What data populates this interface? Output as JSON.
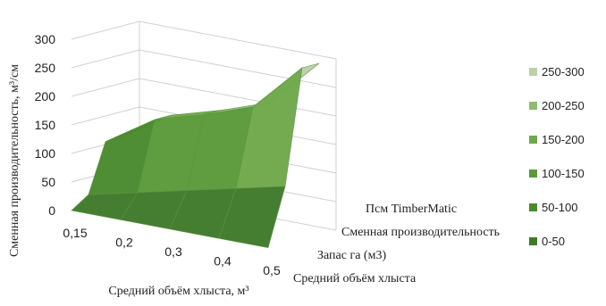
{
  "chart_data": {
    "type": "surface",
    "title": "",
    "xlabel": "Средний объём хлыста, м³",
    "ylabel": "Сменная производительность, м³/см",
    "zlim": [
      0,
      300
    ],
    "z_ticks": [
      0,
      50,
      100,
      150,
      200,
      250,
      300
    ],
    "x_categories": [
      "0,15",
      "0,2",
      "0,3",
      "0,4",
      "0,5"
    ],
    "depth_series": [
      "Средний объём хлыста",
      "Запас га (м3)",
      "Сменная производительность",
      "Псм TimberMatic"
    ],
    "grid": true,
    "legend_position": "right",
    "legend": [
      {
        "label": "250-300",
        "color": "#b9d1a7"
      },
      {
        "label": "200-250",
        "color": "#8fbc6c"
      },
      {
        "label": "150-200",
        "color": "#6fa84b"
      },
      {
        "label": "100-150",
        "color": "#5a9a3a"
      },
      {
        "label": "50-100",
        "color": "#4a8a2f"
      },
      {
        "label": "0-50",
        "color": "#3f7a2a"
      }
    ],
    "surface_values": [
      [
        0.15,
        0.2,
        0.3,
        0.4,
        0.5
      ],
      [
        20,
        40,
        60,
        80,
        100
      ],
      [
        105,
        160,
        185,
        215,
        300
      ],
      [
        105,
        160,
        185,
        215,
        300
      ]
    ]
  }
}
